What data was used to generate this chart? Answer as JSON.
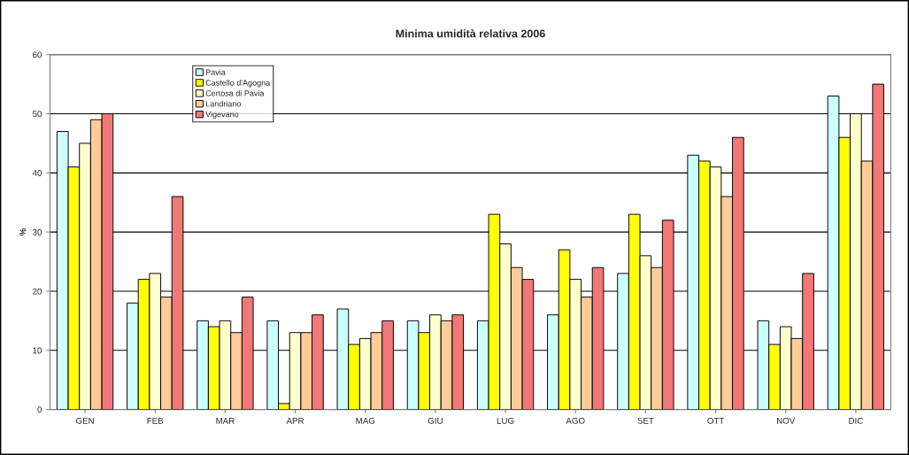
{
  "chart_data": {
    "type": "bar",
    "title": "Minima umidità relativa 2006",
    "ylabel": "%",
    "categories": [
      "GEN",
      "FEB",
      "MAR",
      "APR",
      "MAG",
      "GIU",
      "LUG",
      "AGO",
      "SET",
      "OTT",
      "NOV",
      "DIC"
    ],
    "series": [
      {
        "name": "Pavia",
        "color": "#ccffff",
        "values": [
          47,
          18,
          15,
          15,
          17,
          15,
          15,
          16,
          23,
          43,
          15,
          53
        ]
      },
      {
        "name": "Castello d'Agogna",
        "color": "#ffff00",
        "values": [
          41,
          22,
          14,
          1,
          11,
          13,
          33,
          27,
          33,
          42,
          11,
          46
        ]
      },
      {
        "name": "Certosa di Pavia",
        "color": "#ffffcc",
        "values": [
          45,
          23,
          15,
          13,
          12,
          16,
          28,
          22,
          26,
          41,
          14,
          50
        ]
      },
      {
        "name": "Landriano",
        "color": "#ffcc99",
        "values": [
          49,
          19,
          13,
          13,
          13,
          15,
          24,
          19,
          24,
          36,
          12,
          42
        ]
      },
      {
        "name": "Vigevano",
        "color": "#f27777",
        "values": [
          50,
          36,
          19,
          16,
          15,
          16,
          22,
          24,
          32,
          46,
          23,
          55
        ]
      }
    ],
    "ylim": [
      0,
      60
    ],
    "yticks": [
      0,
      10,
      20,
      30,
      40,
      50,
      60
    ],
    "grid": "y",
    "legend": "top left"
  }
}
